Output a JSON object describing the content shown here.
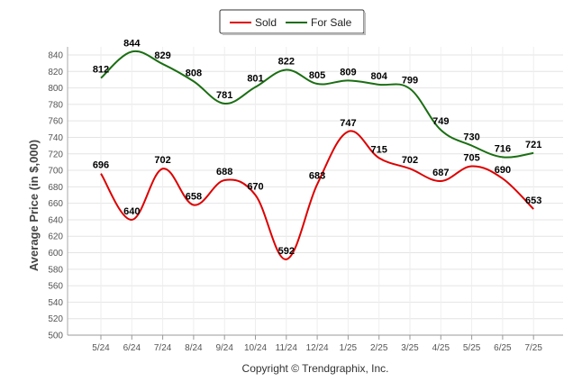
{
  "chart_data": {
    "type": "line",
    "categories": [
      "5/24",
      "6/24",
      "7/24",
      "8/24",
      "9/24",
      "10/24",
      "11/24",
      "12/24",
      "1/25",
      "2/25",
      "3/25",
      "4/25",
      "5/25",
      "6/25",
      "7/25"
    ],
    "series": [
      {
        "name": "Sold",
        "color": "#dd0000",
        "values": [
          696,
          640,
          702,
          658,
          688,
          670,
          592,
          683,
          747,
          715,
          702,
          687,
          705,
          690,
          653
        ]
      },
      {
        "name": "For Sale",
        "color": "#1a6e12",
        "values": [
          812,
          844,
          829,
          808,
          781,
          801,
          822,
          805,
          809,
          804,
          799,
          749,
          730,
          716,
          721
        ]
      }
    ],
    "ylabel": "Average Price (in $,000)",
    "xlabel": "",
    "ylim": [
      500,
      840
    ],
    "yticks": [
      500,
      520,
      540,
      560,
      580,
      600,
      620,
      640,
      660,
      680,
      700,
      720,
      740,
      760,
      780,
      800,
      820,
      840
    ],
    "grid": true,
    "legend_position": "top-center"
  },
  "footer": {
    "copyright": "Copyright © Trendgraphix, Inc."
  }
}
